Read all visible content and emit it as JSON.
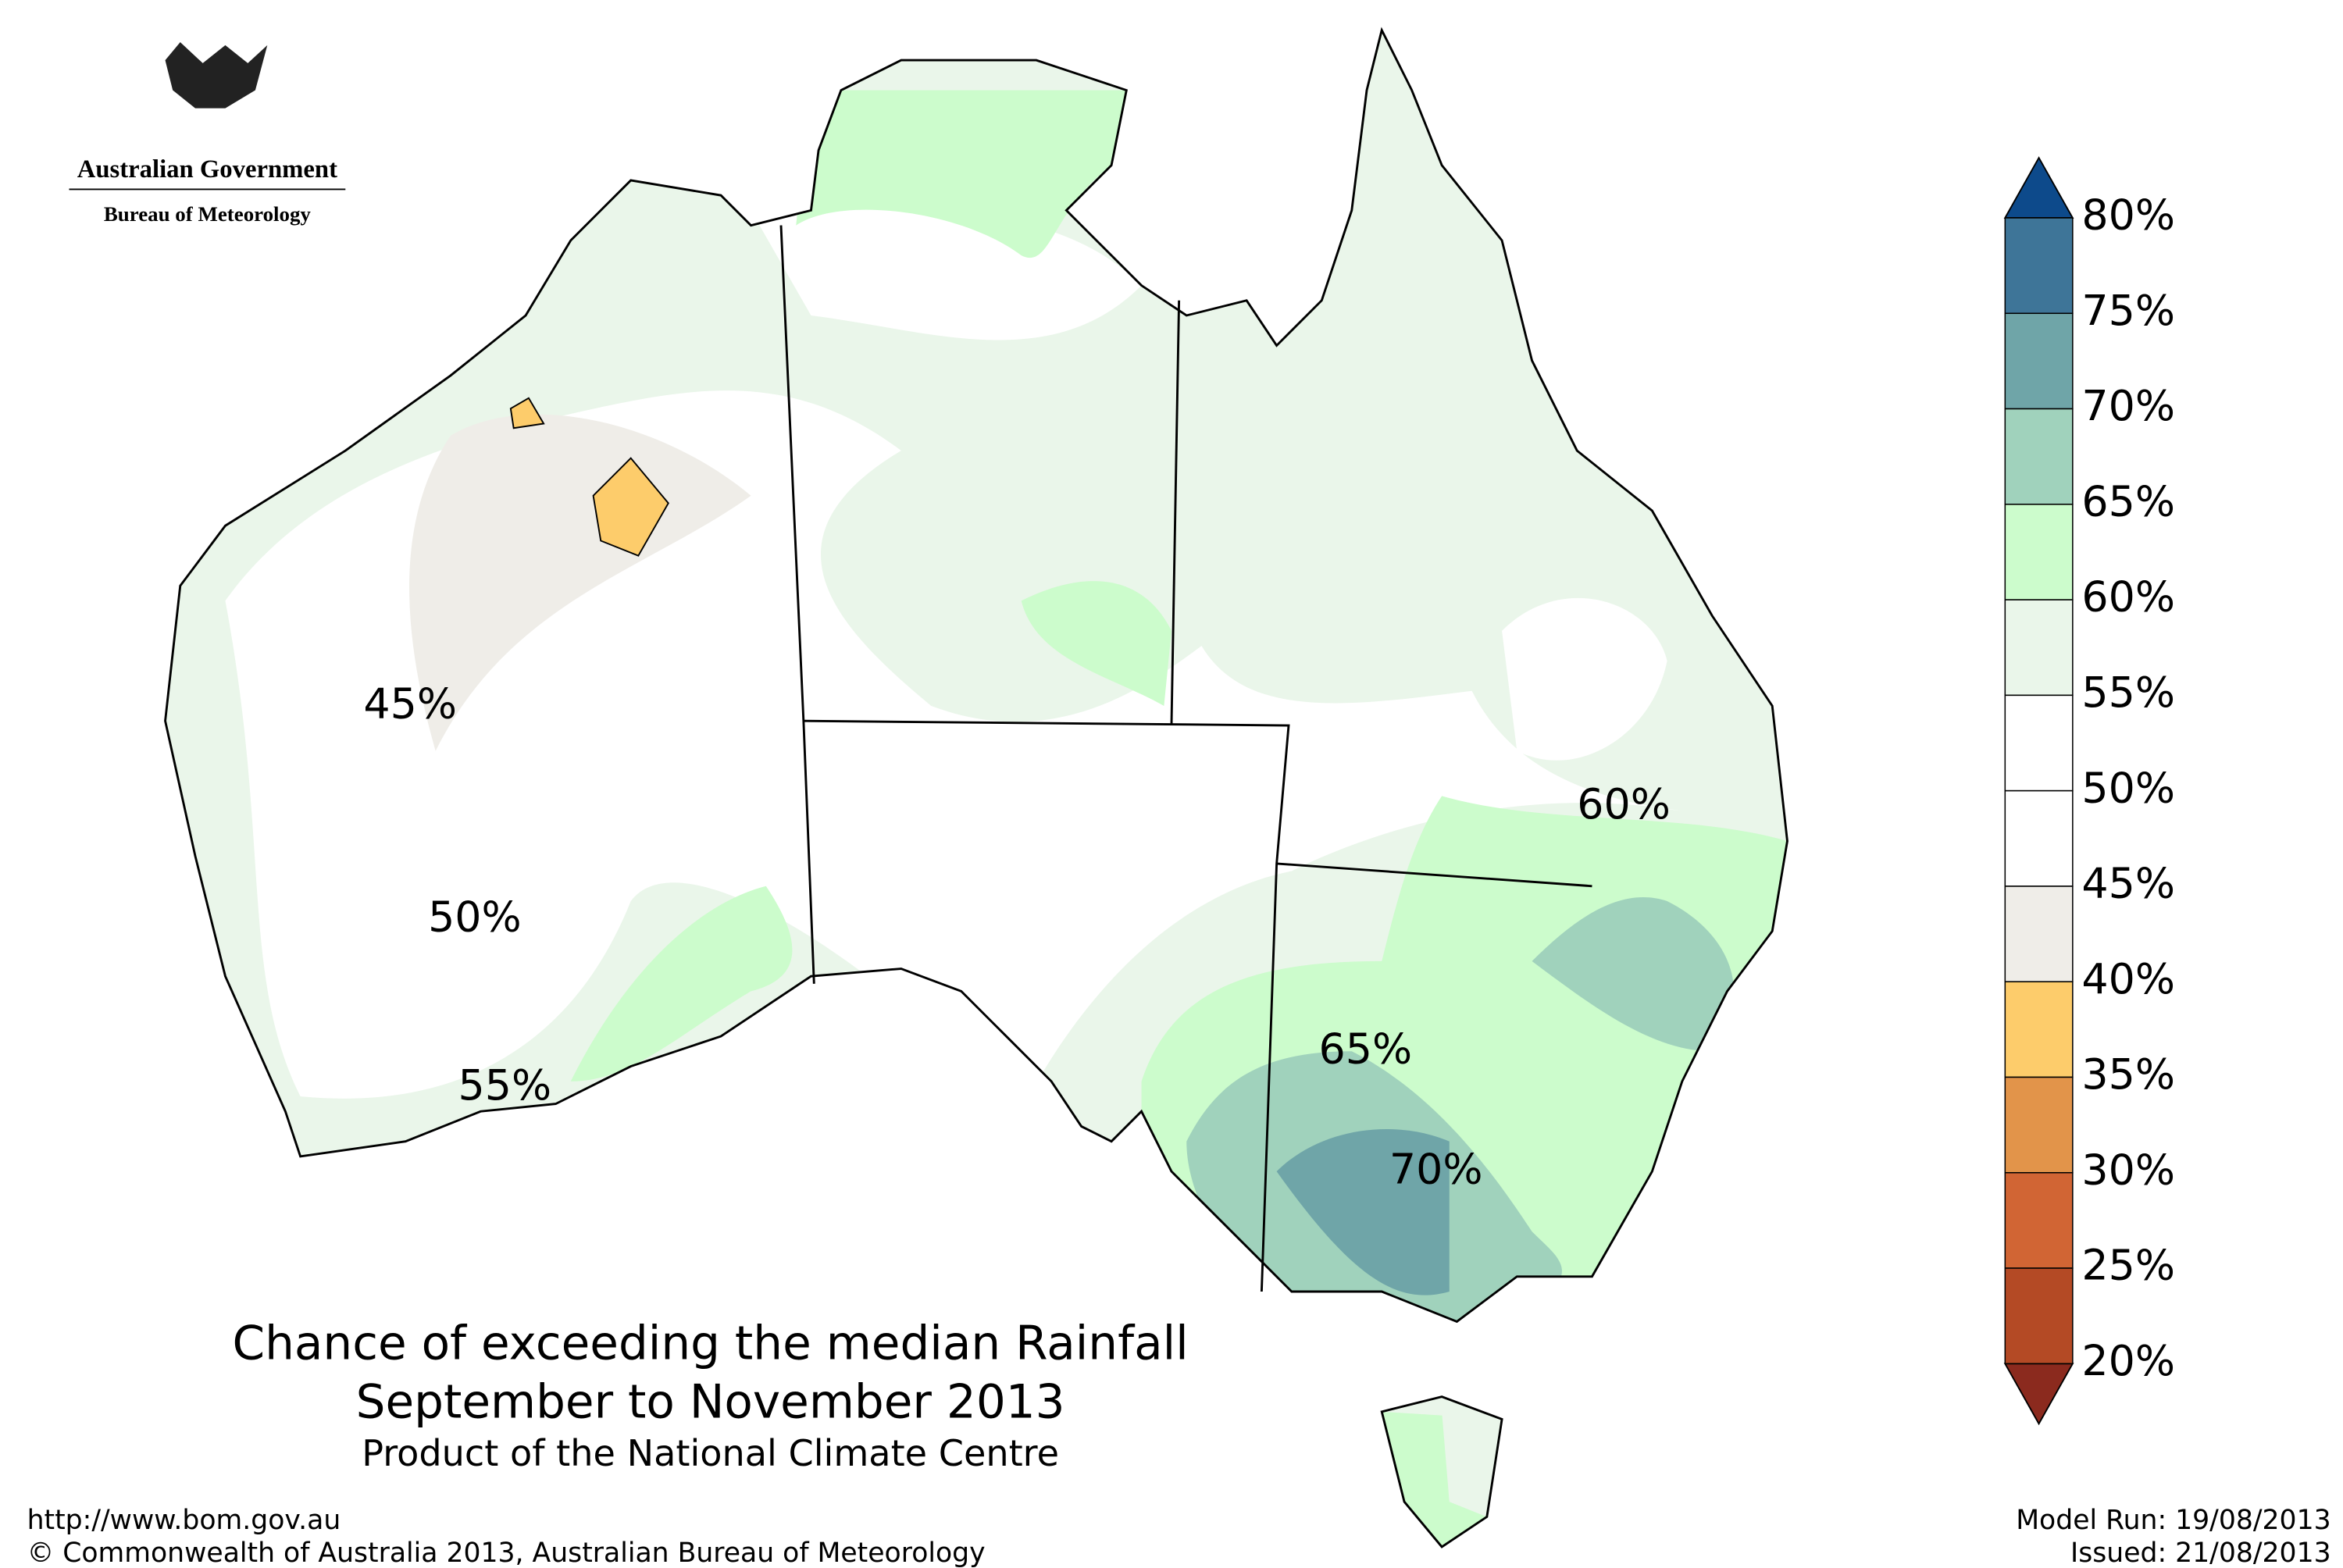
{
  "header": {
    "government": "Australian Government",
    "bureau": "Bureau of Meteorology"
  },
  "title": {
    "line1": "Chance of exceeding the median Rainfall",
    "line2": "September to November 2013",
    "line3": "Product of the National Climate Centre"
  },
  "contour_labels": [
    "45%",
    "50%",
    "55%",
    "60%",
    "65%",
    "70%"
  ],
  "legend": {
    "ticks": [
      "80%",
      "75%",
      "70%",
      "65%",
      "60%",
      "55%",
      "50%",
      "45%",
      "40%",
      "35%",
      "30%",
      "25%",
      "20%"
    ],
    "band_colors": [
      "#3e7598",
      "#6fa5a8",
      "#a0d2bc",
      "#ccfccc",
      "#eaf6ea",
      "#ffffff",
      "#ffffff",
      "#efede8",
      "#fdcc6b",
      "#e2944a",
      "#d16534",
      "#b44a25"
    ],
    "over_color": "#0d4a8b",
    "under_color": "#8b2a1e"
  },
  "footer": {
    "url": "http://www.bom.gov.au",
    "copyright": "©  Commonwealth of Australia 2013, Australian Bureau of Meteorology",
    "model_run": "Model Run: 19/08/2013",
    "issued": "Issued: 21/08/2013"
  }
}
